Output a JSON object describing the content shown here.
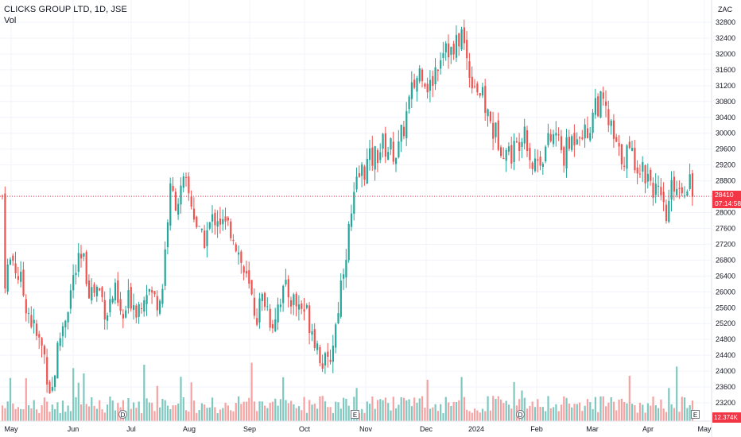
{
  "header": {
    "title": "CLICKS GROUP LTD, 1D, JSE",
    "volume_label": "Vol"
  },
  "currency": "ZAC",
  "last_price": "28410",
  "countdown": "07:14:58",
  "last_volume": "12.374K",
  "colors": {
    "up": "#26a69a",
    "down": "#ef5350",
    "up_vol": "#7fc8c0",
    "down_vol": "#f4a3a2",
    "grid": "#f0f3fa",
    "price_line": "#f23645"
  },
  "markers": [
    {
      "type": "dividend-icon",
      "label": "D",
      "near": "Jul"
    },
    {
      "type": "earnings-icon",
      "label": "E",
      "near": "Oct"
    },
    {
      "type": "dividend-icon",
      "label": "D",
      "near": "2024"
    },
    {
      "type": "earnings-icon",
      "label": "E",
      "near": "Apr"
    }
  ],
  "chart_data": {
    "type": "candlestick",
    "title": "CLICKS GROUP LTD, 1D, JSE",
    "y_ticks": [
      23200,
      23600,
      24000,
      24400,
      24800,
      25200,
      25600,
      26000,
      26400,
      26800,
      27200,
      27600,
      28000,
      28400,
      28800,
      29200,
      29600,
      30000,
      30400,
      30800,
      31200,
      31600,
      32000,
      32400,
      32800
    ],
    "ylim": [
      22700,
      33200
    ],
    "x_labels": [
      "May",
      "Jun",
      "Jul",
      "Aug",
      "Sep",
      "Oct",
      "Nov",
      "Dec",
      "2024",
      "Feb",
      "Mar",
      "Apr",
      "May"
    ],
    "close_path": [
      [
        "May",
        26300
      ],
      [
        "",
        26900
      ],
      [
        "",
        26300
      ],
      [
        "",
        25600
      ],
      [
        "",
        24900
      ],
      [
        "",
        24500
      ],
      [
        "",
        23400
      ],
      [
        "Jun",
        24800
      ],
      [
        "",
        25600
      ],
      [
        "",
        26500
      ],
      [
        "",
        26800
      ],
      [
        "",
        26000
      ],
      [
        "",
        26100
      ],
      [
        "",
        25500
      ],
      [
        "Jul",
        26000
      ],
      [
        "",
        25200
      ],
      [
        "",
        25900
      ],
      [
        "",
        25600
      ],
      [
        "",
        26200
      ],
      [
        "",
        25800
      ],
      [
        "",
        25900
      ],
      [
        "Aug",
        28500
      ],
      [
        "",
        28300
      ],
      [
        "",
        28700
      ],
      [
        "",
        28100
      ],
      [
        "",
        27200
      ],
      [
        "",
        27600
      ],
      [
        "",
        28000
      ],
      [
        "",
        27600
      ],
      [
        "Sep",
        27600
      ],
      [
        "",
        26800
      ],
      [
        "",
        26100
      ],
      [
        "",
        25400
      ],
      [
        "",
        25900
      ],
      [
        "",
        25200
      ],
      [
        "",
        25900
      ],
      [
        "",
        26000
      ],
      [
        "Oct",
        25700
      ],
      [
        "",
        25600
      ],
      [
        "",
        25200
      ],
      [
        "",
        24500
      ],
      [
        "",
        24000
      ],
      [
        "",
        25000
      ],
      [
        "",
        26600
      ],
      [
        "",
        27800
      ],
      [
        "",
        28900
      ],
      [
        "Nov",
        29200
      ],
      [
        "",
        29400
      ],
      [
        "",
        29700
      ],
      [
        "",
        29600
      ],
      [
        "",
        29500
      ],
      [
        "",
        30400
      ],
      [
        "",
        31200
      ],
      [
        "",
        31700
      ],
      [
        "Dec",
        31100
      ],
      [
        "",
        31800
      ],
      [
        "",
        32400
      ],
      [
        "",
        31900
      ],
      [
        "",
        32600
      ],
      [
        "",
        31600
      ],
      [
        "",
        31200
      ],
      [
        "2024",
        30700
      ],
      [
        "",
        30100
      ],
      [
        "",
        29800
      ],
      [
        "",
        29500
      ],
      [
        "",
        29600
      ],
      [
        "",
        30300
      ],
      [
        "",
        29200
      ],
      [
        "",
        29400
      ],
      [
        "Feb",
        29700
      ],
      [
        "",
        30000
      ],
      [
        "",
        29400
      ],
      [
        "",
        29800
      ],
      [
        "",
        30200
      ],
      [
        "",
        29900
      ],
      [
        "Mar",
        30800
      ],
      [
        "",
        30700
      ],
      [
        "",
        30100
      ],
      [
        "",
        29400
      ],
      [
        "",
        29500
      ],
      [
        "",
        29400
      ],
      [
        "",
        29100
      ],
      [
        "Apr",
        28900
      ],
      [
        "",
        28400
      ],
      [
        "",
        27800
      ],
      [
        "",
        28800
      ],
      [
        "",
        28600
      ],
      [
        "",
        28900
      ],
      [
        "",
        28410
      ]
    ],
    "volume_ylim": [
      0,
      100
    ]
  }
}
